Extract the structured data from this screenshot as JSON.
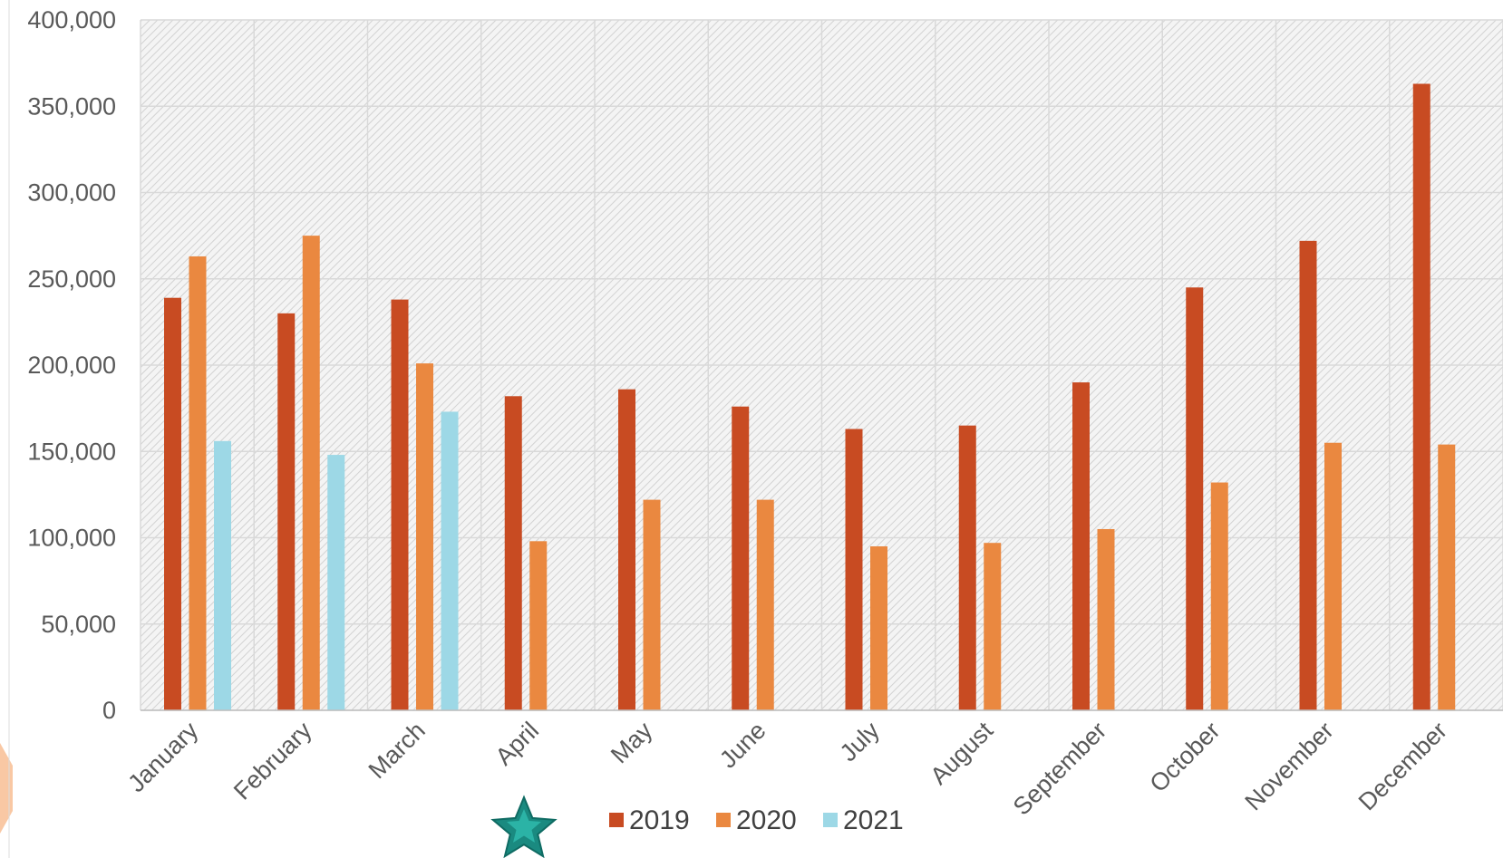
{
  "chart_data": {
    "type": "bar",
    "title": "",
    "xlabel": "",
    "ylabel": "",
    "categories": [
      "January",
      "February",
      "March",
      "April",
      "May",
      "June",
      "July",
      "August",
      "September",
      "October",
      "November",
      "December"
    ],
    "series": [
      {
        "name": "2019",
        "color": "#c84b22",
        "values": [
          239000,
          230000,
          238000,
          182000,
          186000,
          176000,
          163000,
          165000,
          190000,
          245000,
          272000,
          363000
        ]
      },
      {
        "name": "2020",
        "color": "#ea8840",
        "values": [
          263000,
          275000,
          201000,
          98000,
          122000,
          122000,
          95000,
          97000,
          105000,
          132000,
          155000,
          154000
        ]
      },
      {
        "name": "2021",
        "color": "#9dd8e6",
        "values": [
          156000,
          148000,
          173000,
          null,
          null,
          null,
          null,
          null,
          null,
          null,
          null,
          null
        ]
      }
    ],
    "ylim": [
      0,
      400000
    ],
    "yticks": [
      "0",
      "50,000",
      "100,000",
      "150,000",
      "200,000",
      "250,000",
      "300,000",
      "350,000",
      "400,000"
    ],
    "ytick_values": [
      0,
      50000,
      100000,
      150000,
      200000,
      250000,
      300000,
      350000,
      400000
    ],
    "grid": true,
    "legend_position": "bottom"
  }
}
